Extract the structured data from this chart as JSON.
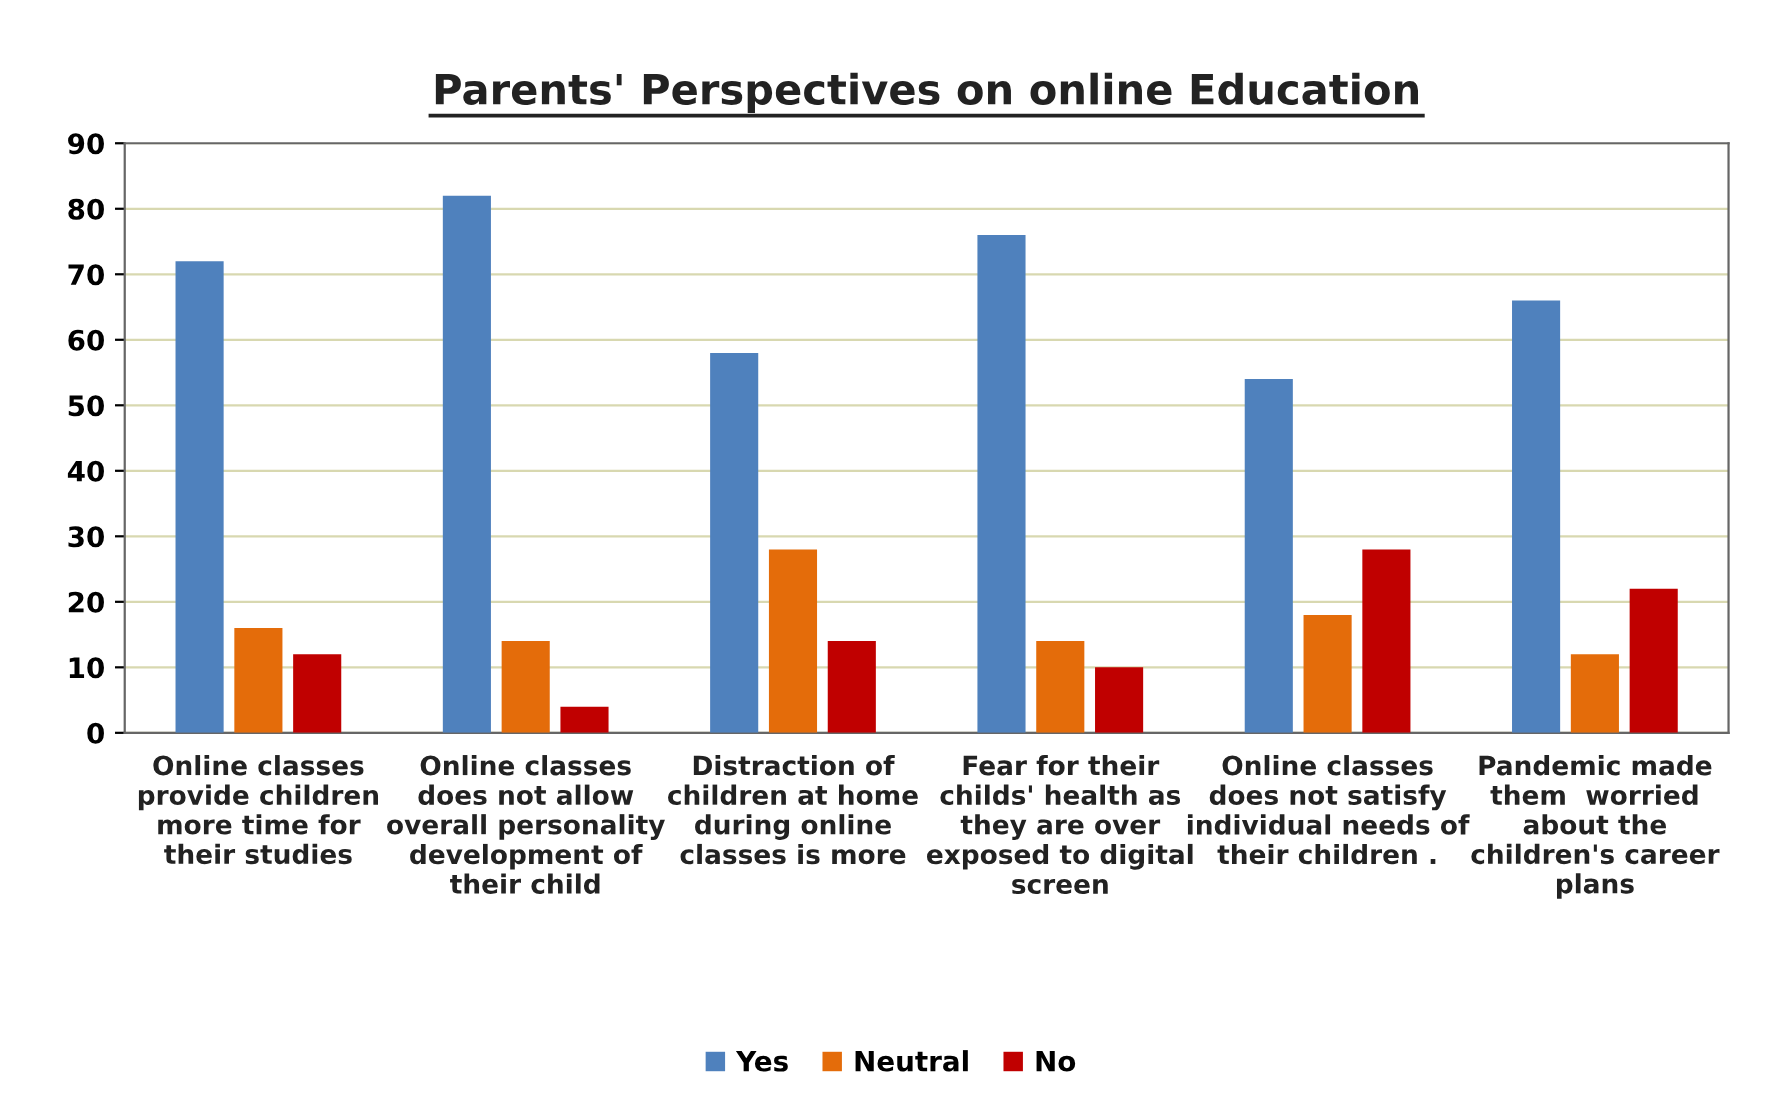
{
  "chart_data": {
    "type": "bar",
    "title": "Parents' Perspectives on online Education",
    "categories": [
      "Online classes\nprovide children\nmore time for\ntheir studies",
      "Online classes\ndoes not allow\noverall personality\ndevelopment of\ntheir child",
      "Distraction of\nchildren at home\nduring online\nclasses is more",
      "Fear for their\nchilds' health as\nthey are over\nexposed to digital\nscreen",
      "Online classes\ndoes not satisfy\nindividual needs of\ntheir children .",
      "Pandemic made\nthem  worried\nabout the\nchildren's career\nplans"
    ],
    "series": [
      {
        "name": "Yes",
        "color": "#4f81bd",
        "values": [
          72,
          82,
          58,
          76,
          54,
          66
        ]
      },
      {
        "name": "Neutral",
        "color": "#e46c0a",
        "values": [
          16,
          14,
          28,
          14,
          18,
          12
        ]
      },
      {
        "name": "No",
        "color": "#c00000",
        "values": [
          12,
          4,
          14,
          10,
          28,
          22
        ]
      }
    ],
    "ylim": [
      0,
      90
    ],
    "yticks": [
      0,
      10,
      20,
      30,
      40,
      50,
      60,
      70,
      80,
      90
    ],
    "grid": "y",
    "legend": "bottom"
  }
}
